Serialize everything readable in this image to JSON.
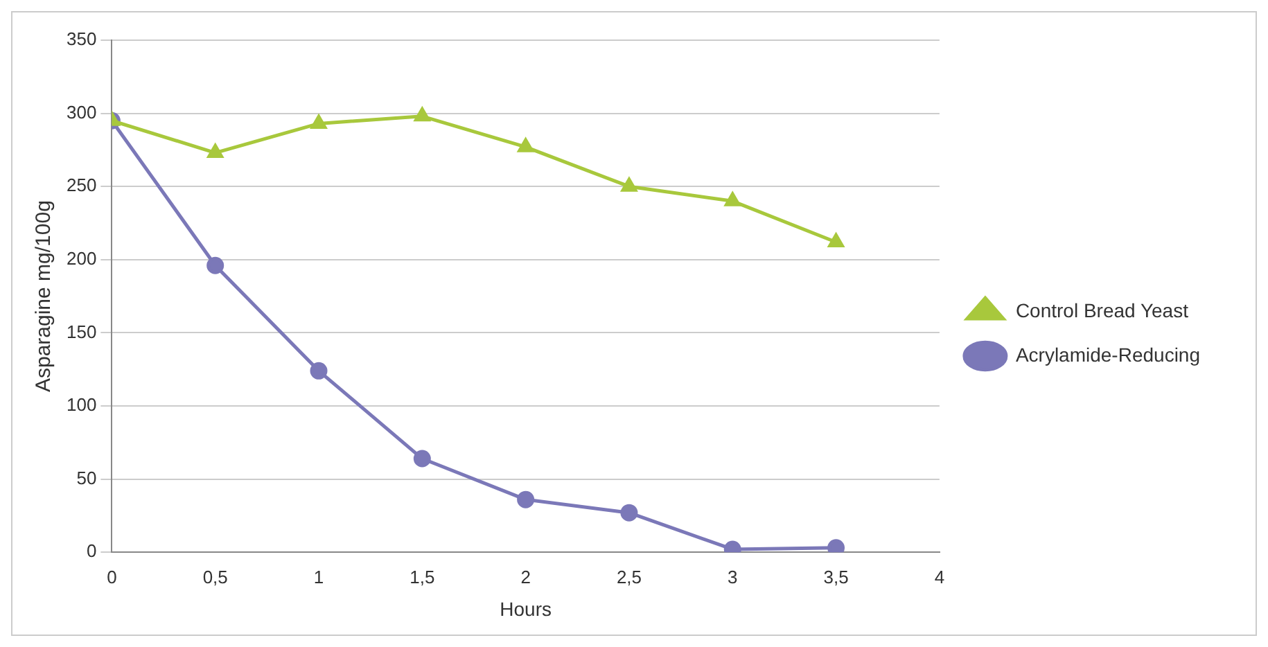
{
  "chart_data": {
    "type": "line",
    "xlabel": "Hours",
    "ylabel": "Asparagine mg/100g",
    "x": [
      0,
      0.5,
      1,
      1.5,
      2,
      2.5,
      3,
      3.5
    ],
    "series": [
      {
        "name": "Control Bread Yeast",
        "color": "#a8c83c",
        "marker": "triangle",
        "values": [
          295,
          273,
          293,
          298,
          277,
          250,
          240,
          212
        ]
      },
      {
        "name": "Acrylamide-Reducing",
        "color": "#7b78b8",
        "marker": "circle",
        "values": [
          295,
          196,
          124,
          64,
          36,
          27,
          2,
          3
        ]
      }
    ],
    "xlim": [
      0,
      4
    ],
    "xticks": [
      0,
      {
        "value": 0.5,
        "label": "0,5"
      },
      1,
      {
        "value": 1.5,
        "label": "1,5"
      },
      2,
      {
        "value": 2.5,
        "label": "2,5"
      },
      3,
      {
        "value": 3.5,
        "label": "3,5"
      },
      4
    ],
    "ylim": [
      0,
      350
    ],
    "yticks": [
      0,
      50,
      100,
      150,
      200,
      250,
      300,
      350
    ],
    "grid": "y",
    "legend": "right",
    "line_style": "solid"
  }
}
